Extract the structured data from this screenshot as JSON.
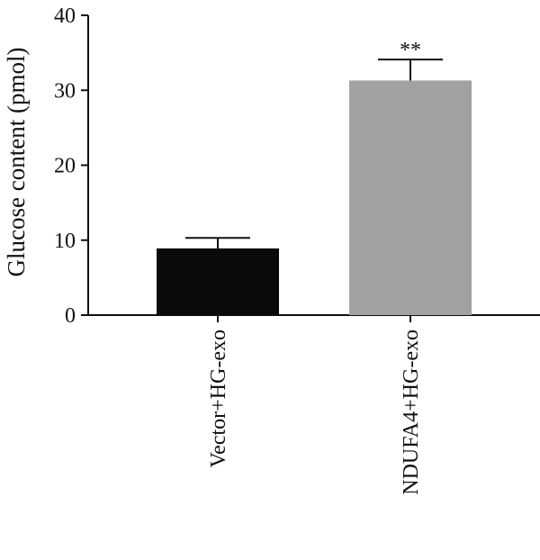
{
  "chart_data": {
    "type": "bar",
    "categories": [
      "Vector+HG-exo",
      "NDUFA4+HG-exo"
    ],
    "values": [
      8.9,
      31.3
    ],
    "errors": [
      1.4,
      2.8
    ],
    "bar_colors": [
      "#0a0a0a",
      "#a0a1a3"
    ],
    "annotations": [
      "",
      "**"
    ],
    "ylabel": "Glucose content (pmol)",
    "xlabel": "",
    "ylim": [
      0,
      40
    ],
    "yticks": [
      0,
      10,
      20,
      30,
      40
    ],
    "grid": false
  }
}
